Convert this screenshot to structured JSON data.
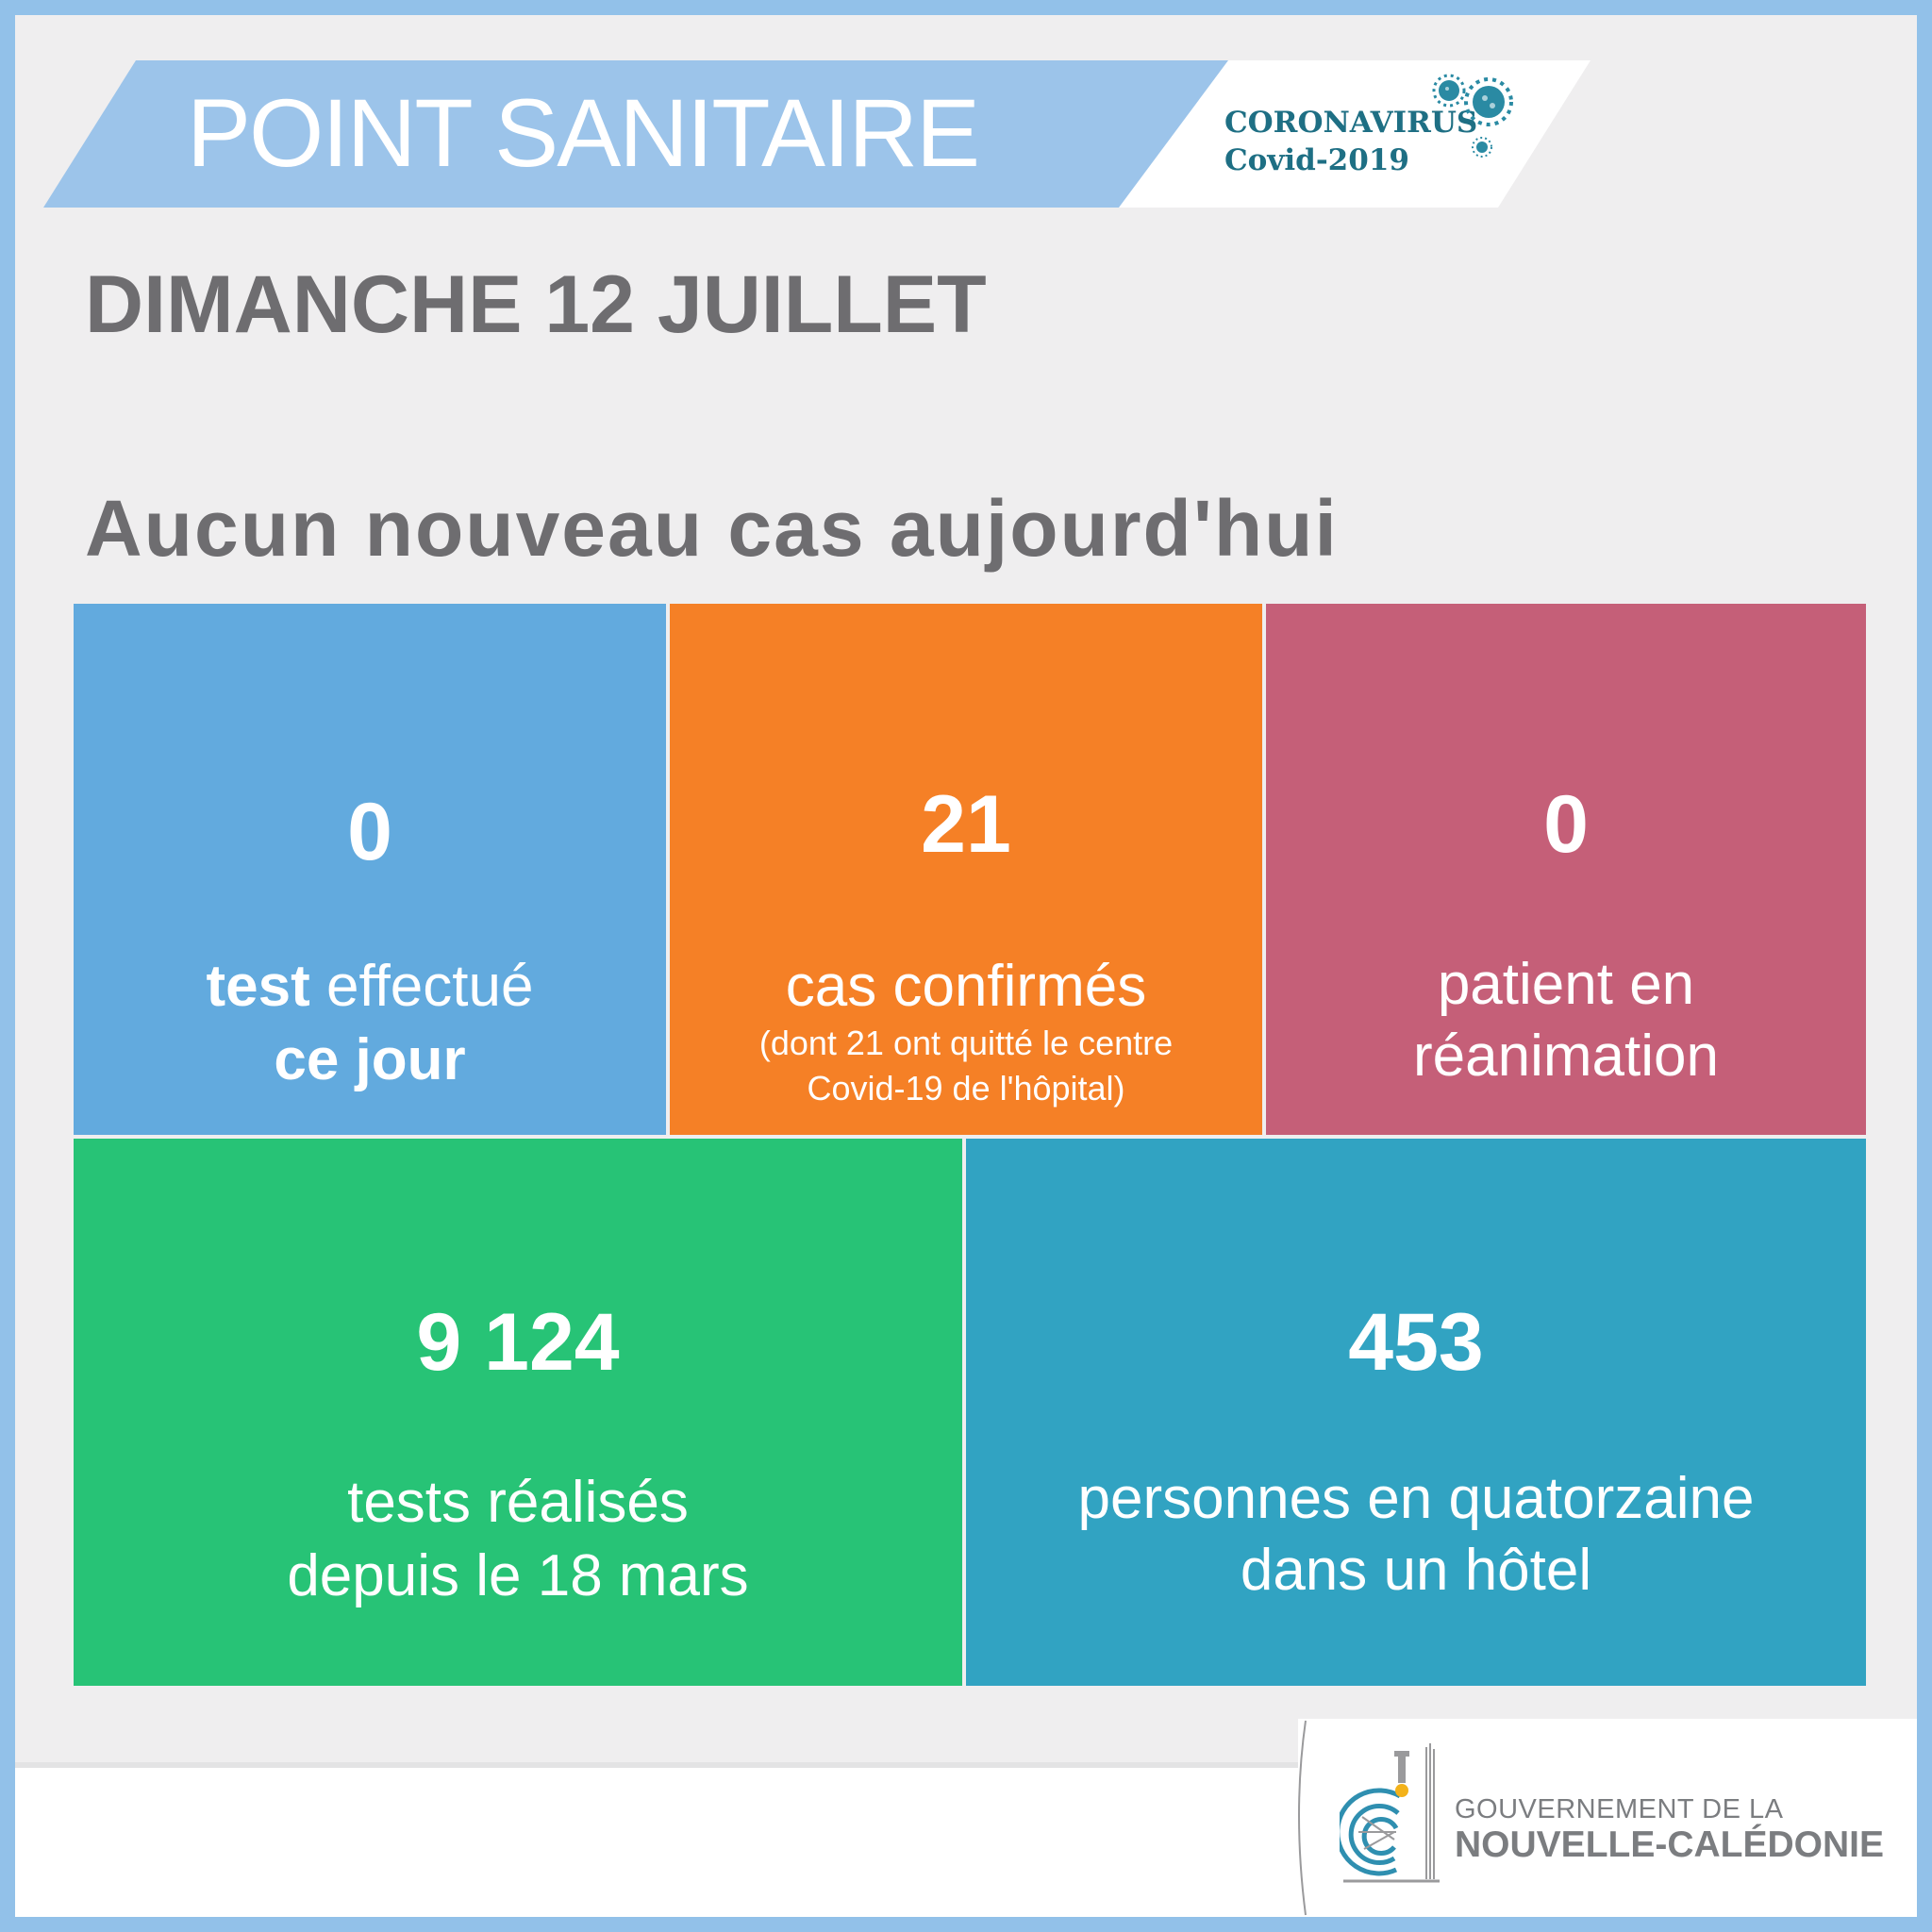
{
  "header": {
    "title": "POINT SANITAIRE",
    "logo_line1": "CORONAVIRUS",
    "logo_line2": "Covid-2019",
    "virus_icon": "virus-icon"
  },
  "date": "DIMANCHE 12 JUILLET",
  "headline": "Aucun nouveau cas aujourd'hui",
  "tiles": {
    "tests_today": {
      "value": "0",
      "label_bold1": "test",
      "label_rest1": " effectué",
      "label_bold2": "ce jour",
      "color": "#62aade"
    },
    "confirmed": {
      "value": "21",
      "label": "cas confirmés",
      "note1": "(dont 21 ont quitté le centre",
      "note2": "Covid-19 de l'hôpital)",
      "color": "#f58026"
    },
    "icu": {
      "value": "0",
      "label1": "patient en",
      "label2": "réanimation",
      "color": "#c55f78"
    },
    "tests_total": {
      "value": "9 124",
      "label1": "tests réalisés",
      "label2": "depuis le 18 mars",
      "color": "#27c376"
    },
    "quarantine": {
      "value": "453",
      "label1": "personnes en quatorzaine",
      "label2": "dans un hôtel",
      "color": "#31a3c2"
    }
  },
  "footer": {
    "gov_line1": "GOUVERNEMENT DE LA",
    "gov_line2": "NOUVELLE-CALÉDONIE",
    "emblem_icon": "nautilus-emblem-icon"
  }
}
